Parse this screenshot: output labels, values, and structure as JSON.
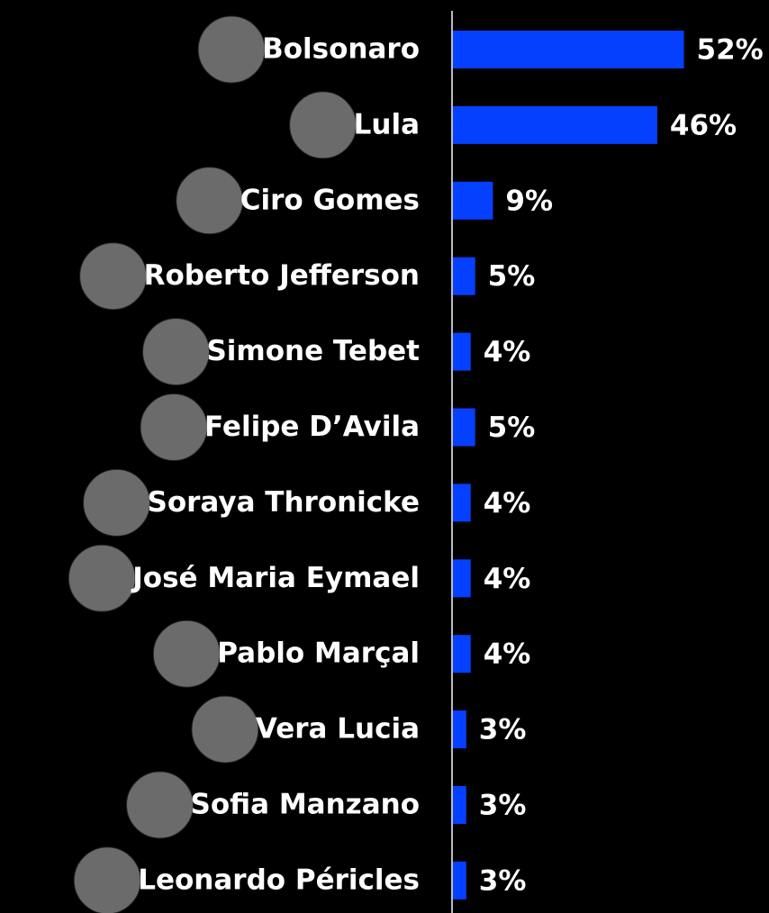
{
  "chart_data": {
    "type": "hbar",
    "categories": [
      "Bolsonaro",
      "Lula",
      "Ciro Gomes",
      "Roberto Jefferson",
      "Simone Tebet",
      "Felipe D’Avila",
      "Soraya Thronicke",
      "José Maria Eymael",
      "Pablo Marçal",
      "Vera Lucia",
      "Sofia Manzano",
      "Leonardo Péricles"
    ],
    "values": [
      52,
      46,
      9,
      5,
      4,
      5,
      4,
      4,
      4,
      3,
      3,
      3
    ],
    "value_labels": [
      "52%",
      "46%",
      "9%",
      "5%",
      "4%",
      "5%",
      "4%",
      "4%",
      "4%",
      "3%",
      "3%",
      "3%"
    ],
    "color": "#0640ff",
    "xlim": [
      0,
      60
    ]
  }
}
